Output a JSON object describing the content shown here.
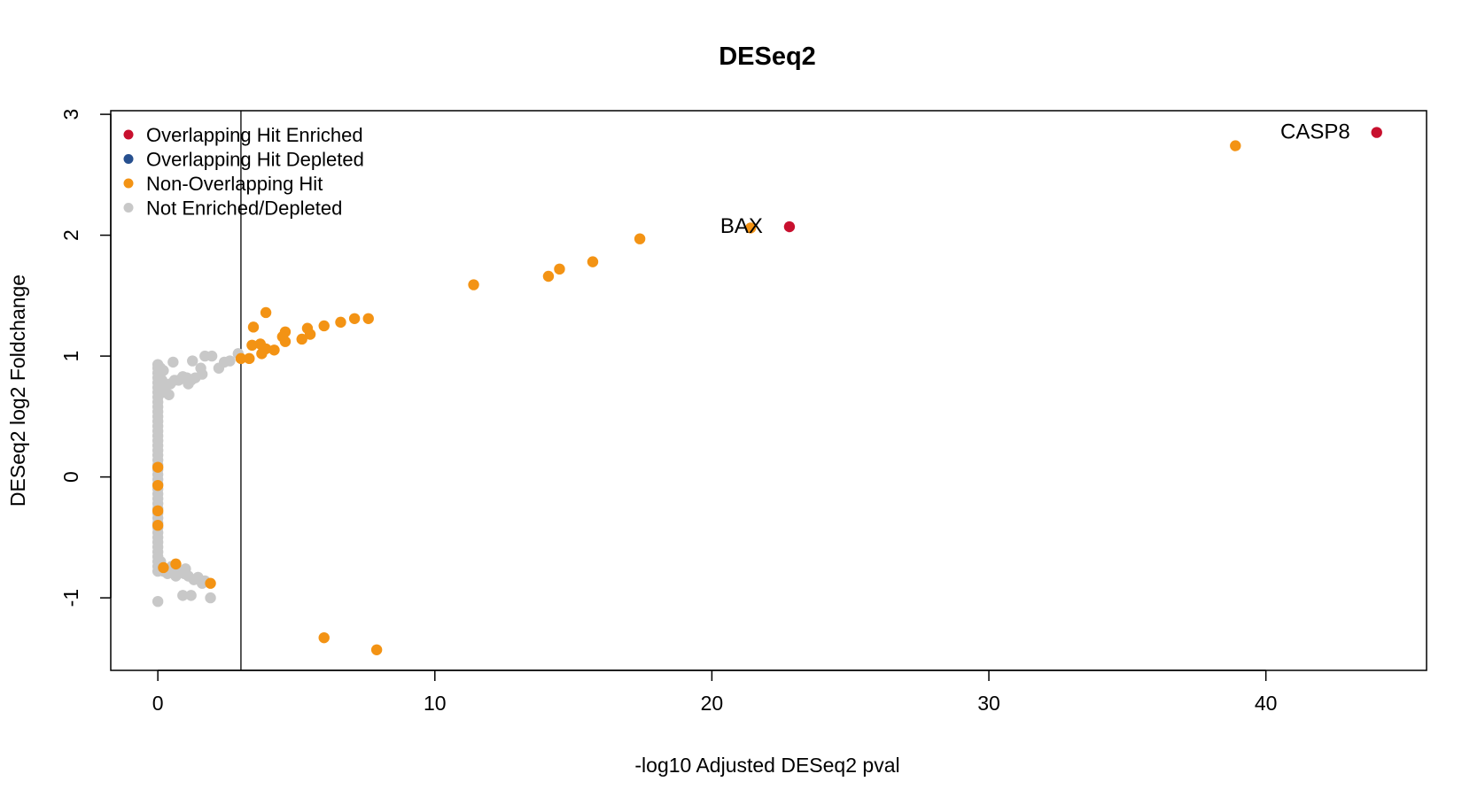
{
  "chart_data": {
    "type": "scatter",
    "title": "DESeq2",
    "xlabel": "-log10 Adjusted DESeq2 pval",
    "ylabel": "DESeq2 log2 Foldchange",
    "xlim": [
      -1.7,
      45.8
    ],
    "ylim": [
      -1.6,
      3.03
    ],
    "xticks": [
      0,
      10,
      20,
      30,
      40
    ],
    "yticks": [
      -1,
      0,
      1,
      2,
      3
    ],
    "grid": false,
    "legend_position": "top-left",
    "vline_x": 3,
    "legend": [
      {
        "label": "Overlapping Hit Enriched",
        "color": "#c8102e"
      },
      {
        "label": "Overlapping Hit Depleted",
        "color": "#27508f"
      },
      {
        "label": "Non-Overlapping Hit",
        "color": "#f39314"
      },
      {
        "label": "Not Enriched/Depleted",
        "color": "#c8c8c8"
      }
    ],
    "series": [
      {
        "name": "Not Enriched/Depleted",
        "color": "#c8c8c8",
        "points": [
          [
            0,
            0.93
          ],
          [
            0,
            0.9
          ],
          [
            0,
            0.86
          ],
          [
            0,
            0.82
          ],
          [
            0,
            0.78
          ],
          [
            0,
            0.74
          ],
          [
            0,
            0.7
          ],
          [
            0,
            0.66
          ],
          [
            0,
            0.62
          ],
          [
            0,
            0.58
          ],
          [
            0,
            0.54
          ],
          [
            0,
            0.5
          ],
          [
            0,
            0.46
          ],
          [
            0,
            0.42
          ],
          [
            0,
            0.38
          ],
          [
            0,
            0.34
          ],
          [
            0,
            0.3
          ],
          [
            0,
            0.26
          ],
          [
            0,
            0.22
          ],
          [
            0,
            0.18
          ],
          [
            0,
            0.14
          ],
          [
            0,
            0.1
          ],
          [
            0,
            0.06
          ],
          [
            0,
            0.02
          ],
          [
            0,
            -0.02
          ],
          [
            0,
            -0.06
          ],
          [
            0,
            -0.1
          ],
          [
            0,
            -0.14
          ],
          [
            0,
            -0.18
          ],
          [
            0,
            -0.22
          ],
          [
            0,
            -0.26
          ],
          [
            0,
            -0.3
          ],
          [
            0,
            -0.34
          ],
          [
            0,
            -0.38
          ],
          [
            0,
            -0.42
          ],
          [
            0,
            -0.46
          ],
          [
            0,
            -0.5
          ],
          [
            0,
            -0.54
          ],
          [
            0,
            -0.58
          ],
          [
            0,
            -0.62
          ],
          [
            0,
            -0.66
          ],
          [
            0,
            -0.7
          ],
          [
            0,
            -0.74
          ],
          [
            0,
            -0.78
          ],
          [
            0.1,
            0.9
          ],
          [
            0.2,
            0.88
          ],
          [
            0.15,
            0.8
          ],
          [
            0.3,
            0.75
          ],
          [
            0.45,
            0.77
          ],
          [
            0.6,
            0.8
          ],
          [
            0.55,
            0.95
          ],
          [
            0.75,
            0.8
          ],
          [
            0.9,
            0.83
          ],
          [
            1.05,
            0.82
          ],
          [
            1.2,
            0.8
          ],
          [
            1.35,
            0.82
          ],
          [
            1.25,
            0.96
          ],
          [
            1.55,
            0.9
          ],
          [
            1.6,
            0.85
          ],
          [
            1.7,
            1.0
          ],
          [
            1.95,
            1.0
          ],
          [
            2.2,
            0.9
          ],
          [
            2.4,
            0.95
          ],
          [
            2.6,
            0.96
          ],
          [
            2.9,
            1.02
          ],
          [
            1.1,
            0.77
          ],
          [
            0.4,
            0.68
          ],
          [
            0.2,
            0.7
          ],
          [
            0,
            -1.03
          ],
          [
            0.1,
            -0.7
          ],
          [
            0.2,
            -0.78
          ],
          [
            0.35,
            -0.8
          ],
          [
            0.5,
            -0.78
          ],
          [
            0.65,
            -0.82
          ],
          [
            0.8,
            -0.78
          ],
          [
            0.95,
            -0.8
          ],
          [
            1.1,
            -0.82
          ],
          [
            1.3,
            -0.85
          ],
          [
            1.45,
            -0.83
          ],
          [
            1.6,
            -0.88
          ],
          [
            1.7,
            -0.86
          ],
          [
            0.9,
            -0.98
          ],
          [
            1.2,
            -0.98
          ],
          [
            1.9,
            -1.0
          ],
          [
            1.0,
            -0.76
          ],
          [
            0.5,
            -0.74
          ]
        ]
      },
      {
        "name": "Non-Overlapping Hit",
        "color": "#f39314",
        "points": [
          [
            38.9,
            2.74
          ],
          [
            21.4,
            2.06
          ],
          [
            17.4,
            1.97
          ],
          [
            15.7,
            1.78
          ],
          [
            14.5,
            1.72
          ],
          [
            14.1,
            1.66
          ],
          [
            11.4,
            1.59
          ],
          [
            7.6,
            1.31
          ],
          [
            7.1,
            1.31
          ],
          [
            6.6,
            1.28
          ],
          [
            6.0,
            1.25
          ],
          [
            5.5,
            1.18
          ],
          [
            5.4,
            1.23
          ],
          [
            5.2,
            1.14
          ],
          [
            4.6,
            1.2
          ],
          [
            4.5,
            1.16
          ],
          [
            4.6,
            1.12
          ],
          [
            4.2,
            1.05
          ],
          [
            3.9,
            1.36
          ],
          [
            3.9,
            1.06
          ],
          [
            3.7,
            1.1
          ],
          [
            3.75,
            1.02
          ],
          [
            3.4,
            1.09
          ],
          [
            3.45,
            1.24
          ],
          [
            3.3,
            0.98
          ],
          [
            3.0,
            0.98
          ],
          [
            0,
            0.08
          ],
          [
            0,
            -0.07
          ],
          [
            0,
            -0.28
          ],
          [
            0,
            -0.4
          ],
          [
            0.65,
            -0.72
          ],
          [
            0.2,
            -0.75
          ],
          [
            1.9,
            -0.88
          ],
          [
            6.0,
            -1.33
          ],
          [
            7.9,
            -1.43
          ]
        ]
      },
      {
        "name": "Overlapping Hit Enriched",
        "color": "#c8102e",
        "points": [
          [
            44.0,
            2.85
          ],
          [
            22.8,
            2.07
          ]
        ]
      }
    ],
    "annotations": [
      {
        "label": "CASP8",
        "x": 44.0,
        "y": 2.85
      },
      {
        "label": "BAX",
        "x": 22.8,
        "y": 2.07
      }
    ]
  }
}
